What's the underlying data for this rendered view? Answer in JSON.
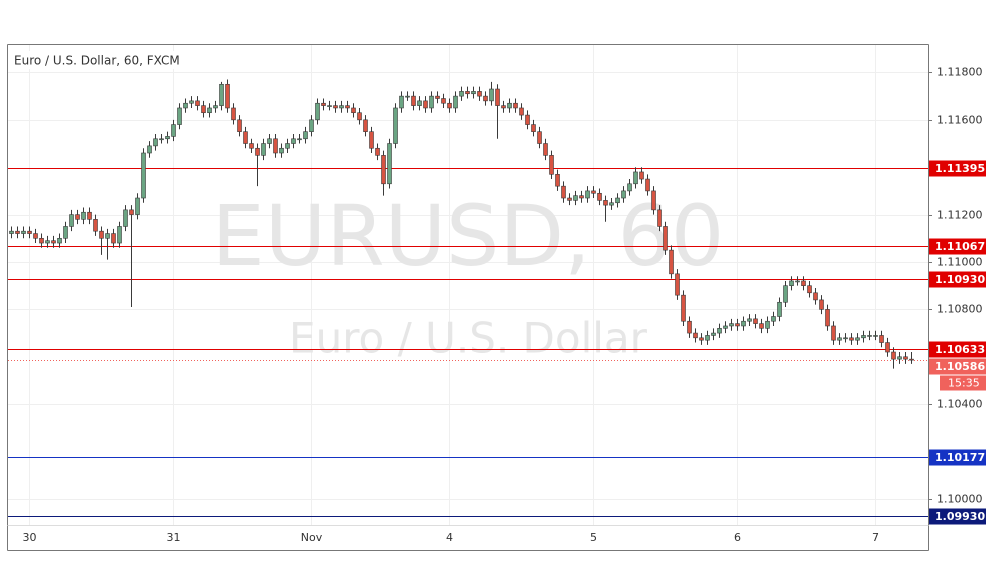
{
  "chart_data": {
    "type": "candlestick",
    "title": "Euro / U.S. Dollar, 60, FXCM",
    "watermark": "EURUSD, 60",
    "watermark_subtitle": "Euro / U.S. Dollar",
    "up_color": "#6ba583",
    "down_color": "#d75442",
    "wick_color": "#3a3a3a",
    "grid": true,
    "categories": [
      null,
      null,
      null,
      "30",
      null,
      null,
      null,
      null,
      null,
      null,
      null,
      null,
      null,
      null,
      null,
      null,
      null,
      null,
      null,
      null,
      null,
      null,
      null,
      null,
      null,
      null,
      null,
      "31",
      null,
      null,
      null,
      null,
      null,
      null,
      null,
      null,
      null,
      null,
      null,
      null,
      null,
      null,
      null,
      null,
      null,
      null,
      null,
      null,
      null,
      null,
      "Nov",
      null,
      null,
      null,
      null,
      null,
      null,
      null,
      null,
      null,
      null,
      null,
      null,
      null,
      null,
      null,
      null,
      null,
      null,
      null,
      null,
      null,
      null,
      "4",
      null,
      null,
      null,
      null,
      null,
      null,
      null,
      null,
      null,
      null,
      null,
      null,
      null,
      null,
      null,
      null,
      null,
      null,
      null,
      null,
      null,
      null,
      null,
      "5",
      null,
      null,
      null,
      null,
      null,
      null,
      null,
      null,
      null,
      null,
      null,
      null,
      null,
      null,
      null,
      null,
      null,
      null,
      null,
      null,
      null,
      null,
      null,
      "6",
      null,
      null,
      null,
      null,
      null,
      null,
      null,
      null,
      null,
      null,
      null,
      null,
      null,
      null,
      null,
      null,
      null,
      null,
      null,
      null,
      null,
      null,
      "7",
      null,
      null,
      null,
      null,
      null,
      null
    ],
    "open": [
      1.1112,
      1.1113,
      1.1112,
      1.1113,
      1.1112,
      1.111,
      1.1108,
      1.1109,
      1.1108,
      1.111,
      1.1115,
      1.112,
      1.1118,
      1.1121,
      1.1118,
      1.1113,
      1.111,
      1.1112,
      1.1108,
      1.1115,
      1.1122,
      1.112,
      1.1127,
      1.1146,
      1.1149,
      1.1152,
      1.1152,
      1.1153,
      1.1158,
      1.1165,
      1.1167,
      1.1168,
      1.1166,
      1.1163,
      1.1165,
      1.1166,
      1.1175,
      1.1165,
      1.116,
      1.1155,
      1.115,
      1.1148,
      1.1145,
      1.115,
      1.1152,
      1.1146,
      1.1148,
      1.115,
      1.1152,
      1.1152,
      1.1155,
      1.116,
      1.1167,
      1.1166,
      1.1166,
      1.1165,
      1.1166,
      1.1165,
      1.1163,
      1.116,
      1.1155,
      1.1148,
      1.1145,
      1.1133,
      1.115,
      1.1165,
      1.117,
      1.117,
      1.1166,
      1.1168,
      1.1165,
      1.117,
      1.1169,
      1.1167,
      1.1165,
      1.117,
      1.1172,
      1.1171,
      1.1172,
      1.117,
      1.1168,
      1.1173,
      1.1166,
      1.1165,
      1.1167,
      1.1165,
      1.1162,
      1.1158,
      1.1155,
      1.115,
      1.1145,
      1.1137,
      1.1132,
      1.1127,
      1.1126,
      1.1128,
      1.1127,
      1.113,
      1.1129,
      1.1126,
      1.1124,
      1.1125,
      1.1127,
      1.113,
      1.1133,
      1.1138,
      1.1135,
      1.113,
      1.1122,
      1.1115,
      1.1105,
      1.1095,
      1.1086,
      1.1075,
      1.107,
      1.1068,
      1.1067,
      1.1069,
      1.107,
      1.1072,
      1.1073,
      1.1074,
      1.1073,
      1.1075,
      1.1076,
      1.1074,
      1.1072,
      1.1075,
      1.1077,
      1.1083,
      1.109,
      1.1092,
      1.1092,
      1.109,
      1.1087,
      1.1084,
      1.108,
      1.1073,
      1.1067,
      1.1068,
      1.1068,
      1.1067,
      1.1068,
      1.1069,
      1.1069,
      1.1069,
      1.1066,
      1.1062,
      1.1059,
      1.106,
      1.1059
    ],
    "high": [
      1.1115,
      1.1115,
      1.1115,
      1.1115,
      1.1114,
      1.1112,
      1.1111,
      1.1111,
      1.1112,
      1.1117,
      1.1122,
      1.1122,
      1.1123,
      1.1123,
      1.112,
      1.1115,
      1.1114,
      1.1114,
      1.1117,
      1.1124,
      1.1124,
      1.1129,
      1.1148,
      1.1151,
      1.1154,
      1.1154,
      1.1155,
      1.116,
      1.1167,
      1.1169,
      1.117,
      1.117,
      1.1168,
      1.1167,
      1.1168,
      1.1176,
      1.1177,
      1.1167,
      1.1162,
      1.1157,
      1.1152,
      1.115,
      1.1152,
      1.1154,
      1.1154,
      1.115,
      1.1152,
      1.1154,
      1.1154,
      1.1157,
      1.1162,
      1.1169,
      1.1169,
      1.1168,
      1.1168,
      1.1168,
      1.1168,
      1.1167,
      1.1165,
      1.1162,
      1.1157,
      1.115,
      1.1147,
      1.1152,
      1.1167,
      1.1172,
      1.1172,
      1.1172,
      1.117,
      1.117,
      1.1172,
      1.1172,
      1.1171,
      1.1169,
      1.1172,
      1.1174,
      1.1174,
      1.1174,
      1.1174,
      1.1172,
      1.1176,
      1.1175,
      1.1168,
      1.1169,
      1.1169,
      1.1167,
      1.1164,
      1.116,
      1.1157,
      1.1152,
      1.1147,
      1.1139,
      1.1134,
      1.1129,
      1.113,
      1.113,
      1.1132,
      1.1132,
      1.1131,
      1.1128,
      1.1127,
      1.1129,
      1.1132,
      1.1135,
      1.114,
      1.114,
      1.1137,
      1.1132,
      1.1124,
      1.1117,
      1.1107,
      1.1097,
      1.1088,
      1.1077,
      1.1072,
      1.107,
      1.1071,
      1.1072,
      1.1074,
      1.1075,
      1.1076,
      1.1076,
      1.1077,
      1.1078,
      1.1078,
      1.1076,
      1.1077,
      1.1079,
      1.1085,
      1.1092,
      1.1094,
      1.1094,
      1.1094,
      1.1092,
      1.1089,
      1.1086,
      1.1082,
      1.1075,
      1.107,
      1.107,
      1.107,
      1.107,
      1.1071,
      1.1071,
      1.1071,
      1.1071,
      1.1068,
      1.1064,
      1.1062,
      1.1062,
      1.1062
    ],
    "low": [
      1.111,
      1.111,
      1.111,
      1.111,
      1.1108,
      1.1106,
      1.1106,
      1.1106,
      1.1106,
      1.1108,
      1.1113,
      1.1116,
      1.1116,
      1.1116,
      1.1111,
      1.1103,
      1.1101,
      1.1106,
      1.1106,
      1.1113,
      1.1081,
      1.1118,
      1.1125,
      1.1144,
      1.1147,
      1.115,
      1.115,
      1.1151,
      1.1156,
      1.1163,
      1.1165,
      1.1164,
      1.1161,
      1.1161,
      1.1163,
      1.1164,
      1.1163,
      1.1158,
      1.1153,
      1.1148,
      1.1146,
      1.1132,
      1.1143,
      1.1148,
      1.1144,
      1.1144,
      1.1146,
      1.1148,
      1.115,
      1.115,
      1.1153,
      1.1158,
      1.1164,
      1.1164,
      1.1163,
      1.1163,
      1.1163,
      1.1161,
      1.1158,
      1.1153,
      1.1146,
      1.1143,
      1.1128,
      1.1131,
      1.1148,
      1.1163,
      1.1168,
      1.1164,
      1.1164,
      1.1163,
      1.1163,
      1.1167,
      1.1165,
      1.1163,
      1.1163,
      1.1168,
      1.1169,
      1.1169,
      1.1168,
      1.1166,
      1.1166,
      1.1152,
      1.1163,
      1.1163,
      1.1163,
      1.116,
      1.1156,
      1.1153,
      1.1148,
      1.1143,
      1.1135,
      1.113,
      1.1125,
      1.1124,
      1.1124,
      1.1125,
      1.1125,
      1.1127,
      1.1124,
      1.1117,
      1.1122,
      1.1123,
      1.1125,
      1.1128,
      1.1131,
      1.1133,
      1.1128,
      1.112,
      1.1113,
      1.1103,
      1.1093,
      1.1084,
      1.1073,
      1.1068,
      1.1066,
      1.1065,
      1.1065,
      1.1067,
      1.1068,
      1.107,
      1.1071,
      1.1071,
      1.1071,
      1.1073,
      1.1072,
      1.107,
      1.107,
      1.1073,
      1.1075,
      1.1081,
      1.1088,
      1.109,
      1.1088,
      1.1085,
      1.1082,
      1.1078,
      1.1071,
      1.1065,
      1.1065,
      1.1066,
      1.1065,
      1.1065,
      1.1066,
      1.1067,
      1.1067,
      1.1064,
      1.106,
      1.1055,
      1.1057,
      1.1057,
      1.1057
    ],
    "close": [
      1.1113,
      1.1112,
      1.1113,
      1.1112,
      1.111,
      1.1108,
      1.1109,
      1.1108,
      1.111,
      1.1115,
      1.112,
      1.1118,
      1.1121,
      1.1118,
      1.1113,
      1.111,
      1.1112,
      1.1108,
      1.1115,
      1.1122,
      1.112,
      1.1127,
      1.1146,
      1.1149,
      1.1152,
      1.1152,
      1.1153,
      1.1158,
      1.1165,
      1.1167,
      1.1168,
      1.1166,
      1.1163,
      1.1165,
      1.1166,
      1.1175,
      1.1165,
      1.116,
      1.1155,
      1.115,
      1.1148,
      1.1145,
      1.115,
      1.1152,
      1.1146,
      1.1148,
      1.115,
      1.1152,
      1.1152,
      1.1155,
      1.116,
      1.1167,
      1.1166,
      1.1166,
      1.1165,
      1.1166,
      1.1165,
      1.1163,
      1.116,
      1.1155,
      1.1148,
      1.1145,
      1.1133,
      1.115,
      1.1165,
      1.117,
      1.117,
      1.1166,
      1.1168,
      1.1165,
      1.117,
      1.1169,
      1.1167,
      1.1165,
      1.117,
      1.1172,
      1.1171,
      1.1172,
      1.117,
      1.1168,
      1.1173,
      1.1166,
      1.1165,
      1.1167,
      1.1165,
      1.1162,
      1.1158,
      1.1155,
      1.115,
      1.1145,
      1.1137,
      1.1132,
      1.1127,
      1.1126,
      1.1128,
      1.1127,
      1.113,
      1.1129,
      1.1126,
      1.1124,
      1.1125,
      1.1127,
      1.113,
      1.1133,
      1.1138,
      1.1135,
      1.113,
      1.1122,
      1.1115,
      1.1105,
      1.1095,
      1.1086,
      1.1075,
      1.107,
      1.1068,
      1.1067,
      1.1069,
      1.107,
      1.1072,
      1.1073,
      1.1074,
      1.1073,
      1.1075,
      1.1076,
      1.1074,
      1.1072,
      1.1075,
      1.1077,
      1.1083,
      1.109,
      1.1092,
      1.1092,
      1.109,
      1.1087,
      1.1084,
      1.108,
      1.1073,
      1.1067,
      1.1068,
      1.1068,
      1.1067,
      1.1068,
      1.1069,
      1.1069,
      1.1069,
      1.1066,
      1.1062,
      1.1059,
      1.106,
      1.1059,
      1.10586
    ],
    "ylim": [
      1.0989,
      1.1192
    ],
    "yticks": [
      {
        "value": 1.118,
        "label": "1.11800"
      },
      {
        "value": 1.116,
        "label": "1.11600"
      },
      {
        "value": 1.112,
        "label": "1.11200"
      },
      {
        "value": 1.11,
        "label": "1.11000"
      },
      {
        "value": 1.108,
        "label": "1.10800"
      },
      {
        "value": 1.104,
        "label": "1.10400"
      },
      {
        "value": 1.1,
        "label": "1.10000"
      }
    ],
    "levels": [
      {
        "value": 1.11395,
        "color": "#e00000"
      },
      {
        "value": 1.11067,
        "color": "#e00000"
      },
      {
        "value": 1.1093,
        "label": "1.10930",
        "color": "#e00000"
      },
      {
        "value": 1.10633,
        "color": "#e00000"
      },
      {
        "value": 1.10177,
        "color": "#1533c4"
      },
      {
        "value": 1.0993,
        "label": "1.09930",
        "color": "#0c1a7a"
      }
    ],
    "current_price": {
      "value": 1.10586,
      "countdown": "15:35",
      "color": "#f0625c"
    }
  }
}
